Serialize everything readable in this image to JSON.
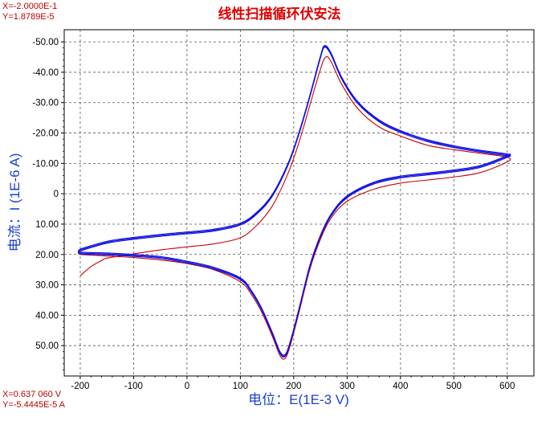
{
  "cursor_readout_top": {
    "x_text": "X=-2.0000E-1",
    "y_text": "Y=1.8789E-5"
  },
  "cursor_readout_bottom": {
    "x_text": "X=0.637 060 V",
    "y_text": "Y=-5.4445E-5 A"
  },
  "colors": {
    "title": "#e00000",
    "axis_label": "#1a3fd6",
    "readout": "#c00000",
    "series_blue": "#1010e0",
    "series_red": "#cc0000",
    "grid": "#555555"
  },
  "chart_data": {
    "type": "line",
    "title": "线性扫描循环伏安法",
    "xlabel": "电位：E(1E-3 V)",
    "ylabel": "电流：I (1E-6 A)",
    "xlim": [
      -230,
      650
    ],
    "ylim": [
      -54,
      60
    ],
    "y_inverted": true,
    "grid": true,
    "grid_style": "dashed",
    "x_ticks": [
      -200,
      -100,
      0,
      100,
      200,
      300,
      400,
      500,
      600
    ],
    "x_tick_labels": [
      "-200",
      "-100",
      "0",
      "100",
      "200",
      "300",
      "400",
      "500",
      "600"
    ],
    "y_ticks": [
      -50,
      -40,
      -30,
      -20,
      -10,
      0,
      10,
      20,
      30,
      40,
      50
    ],
    "y_tick_labels": [
      "-50.00",
      "-40.00",
      "-30.00",
      "-20.00",
      "-10.00",
      "0",
      "10.00",
      "20.00",
      "30.00",
      "40.00",
      "50.00"
    ],
    "series": [
      {
        "color": "#1010e0",
        "x": [
          -200,
          -150,
          -100,
          -50,
          0,
          50,
          100,
          130,
          160,
          190,
          210,
          230,
          250,
          258,
          270,
          290,
          320,
          360,
          400,
          450,
          500,
          550,
          600,
          600,
          550,
          500,
          450,
          400,
          350,
          300,
          270,
          250,
          230,
          210,
          195,
          185,
          175,
          160,
          140,
          120,
          100,
          50,
          0,
          -50,
          -100,
          -150,
          -200,
          -200
        ],
        "y": [
          18.5,
          16.0,
          14.7,
          13.7,
          12.9,
          12.0,
          10.0,
          6.5,
          0.5,
          -10.0,
          -20.0,
          -32.0,
          -45.0,
          -48.5,
          -46.0,
          -38.0,
          -30.0,
          -24.0,
          -20.5,
          -17.5,
          -15.5,
          -14.0,
          -12.8,
          -12.3,
          -9.0,
          -7.5,
          -6.5,
          -5.5,
          -3.5,
          1.0,
          7.0,
          14.0,
          24.0,
          38.0,
          48.0,
          53.0,
          52.5,
          46.0,
          38.0,
          32.0,
          28.0,
          24.5,
          22.5,
          21.0,
          20.3,
          19.8,
          19.5,
          18.5
        ]
      },
      {
        "color": "#cc0000",
        "x": [
          -200,
          -180,
          -160,
          -150,
          -100,
          -50,
          0,
          50,
          100,
          130,
          160,
          190,
          210,
          230,
          250,
          260,
          270,
          290,
          320,
          360,
          400,
          450,
          500,
          550,
          600,
          600,
          550,
          500,
          450,
          400,
          350,
          300,
          270,
          250,
          230,
          210,
          195,
          185,
          175,
          160,
          140,
          120,
          100,
          50,
          0,
          -50,
          -100,
          -150,
          -200
        ],
        "y": [
          27.0,
          24.0,
          22.0,
          21.2,
          19.8,
          18.5,
          17.5,
          16.5,
          14.5,
          10.5,
          4.0,
          -7.0,
          -17.0,
          -29.0,
          -41.0,
          -45.0,
          -43.5,
          -36.0,
          -28.0,
          -22.0,
          -19.0,
          -16.0,
          -14.5,
          -13.3,
          -12.0,
          -10.5,
          -7.0,
          -5.5,
          -4.5,
          -3.5,
          -1.5,
          2.5,
          8.0,
          15.0,
          25.0,
          39.0,
          49.0,
          54.0,
          53.5,
          47.0,
          39.0,
          33.0,
          29.0,
          25.0,
          23.0,
          21.8,
          21.0,
          20.5,
          20.0
        ]
      }
    ]
  }
}
